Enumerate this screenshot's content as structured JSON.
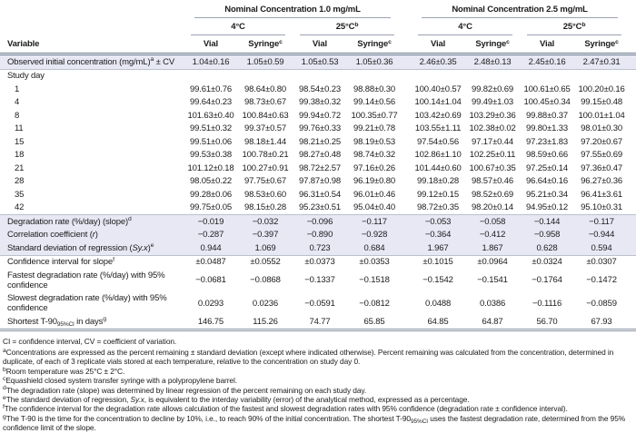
{
  "colors": {
    "row_shade": "#e7e8f4",
    "rule_light": "#9aa2b0",
    "rule_heavy": "#68788f",
    "text": "#1b1b1b"
  },
  "table": {
    "variable_header": "Variable",
    "groups": [
      {
        "label": "Nominal Concentration 1.0 mg/mL"
      },
      {
        "label": "Nominal Concentration 2.5 mg/mL"
      }
    ],
    "temps": [
      {
        "label": [
          {
            "t": "4°C"
          }
        ]
      },
      {
        "label": [
          {
            "t": "25°C"
          },
          {
            "sup": "b"
          }
        ]
      },
      {
        "label": [
          {
            "t": "4°C"
          }
        ]
      },
      {
        "label": [
          {
            "t": "25°C"
          },
          {
            "sup": "b"
          }
        ]
      }
    ],
    "columns": [
      [
        {
          "t": "Vial"
        }
      ],
      [
        {
          "t": "Syringe"
        },
        {
          "sup": "c"
        }
      ],
      [
        {
          "t": "Vial"
        }
      ],
      [
        {
          "t": "Syringe"
        },
        {
          "sup": "c"
        }
      ],
      [
        {
          "t": "Vial"
        }
      ],
      [
        {
          "t": "Syringe"
        },
        {
          "sup": "c"
        }
      ],
      [
        {
          "t": "Vial"
        }
      ],
      [
        {
          "t": "Syringe"
        },
        {
          "sup": "c"
        }
      ]
    ],
    "sections": [
      {
        "shaded": true,
        "rows": [
          {
            "label": [
              {
                "t": "Observed initial concentration (mg/mL)"
              },
              {
                "sup": "a"
              },
              {
                "t": " ± CV"
              }
            ],
            "values": [
              "1.04±0.16",
              "1.05±0.59",
              "1.05±0.53",
              "1.05±0.36",
              "2.46±0.35",
              "2.48±0.13",
              "2.45±0.16",
              "2.47±0.31"
            ]
          }
        ]
      },
      {
        "shaded": false,
        "rows": [
          {
            "label": [
              {
                "t": "Study day"
              }
            ],
            "values": []
          },
          {
            "label": [
              {
                "t": "1"
              }
            ],
            "indent": true,
            "values": [
              "99.61±0.76",
              "98.64±0.80",
              "98.54±0.23",
              "98.88±0.30",
              "100.40±0.57",
              "99.82±0.69",
              "100.61±0.65",
              "100.20±0.16"
            ]
          },
          {
            "label": [
              {
                "t": "4"
              }
            ],
            "indent": true,
            "values": [
              "99.64±0.23",
              "98.73±0.67",
              "99.38±0.32",
              "99.14±0.56",
              "100.14±1.04",
              "99.49±1.03",
              "100.45±0.34",
              "99.15±0.48"
            ]
          },
          {
            "label": [
              {
                "t": "8"
              }
            ],
            "indent": true,
            "values": [
              "101.63±0.40",
              "100.84±0.63",
              "99.94±0.72",
              "100.35±0.77",
              "103.42±0.69",
              "103.29±0.36",
              "99.88±0.37",
              "100.01±1.04"
            ]
          },
          {
            "label": [
              {
                "t": "11"
              }
            ],
            "indent": true,
            "values": [
              "99.51±0.32",
              "99.37±0.57",
              "99.76±0.33",
              "99.21±0.78",
              "103.55±1.11",
              "102.38±0.02",
              "99.80±1.33",
              "98.01±0.30"
            ]
          },
          {
            "label": [
              {
                "t": "15"
              }
            ],
            "indent": true,
            "values": [
              "99.51±0.06",
              "98.18±1.44",
              "98.21±0.25",
              "98.19±0.53",
              "97.54±0.56",
              "97.17±0.44",
              "97.23±1.83",
              "97.20±0.67"
            ]
          },
          {
            "label": [
              {
                "t": "18"
              }
            ],
            "indent": true,
            "values": [
              "99.53±0.38",
              "100.78±0.21",
              "98.27±0.48",
              "98.74±0.32",
              "102.86±1.10",
              "102.25±0.11",
              "98.59±0.66",
              "97.55±0.69"
            ]
          },
          {
            "label": [
              {
                "t": "21"
              }
            ],
            "indent": true,
            "values": [
              "101.12±0.18",
              "100.27±0.91",
              "98.72±2.57",
              "97.16±0.26",
              "101.44±0.60",
              "100.67±0.35",
              "97.25±0.14",
              "97.36±0.47"
            ]
          },
          {
            "label": [
              {
                "t": "28"
              }
            ],
            "indent": true,
            "values": [
              "98.05±0.22",
              "97.75±0.67",
              "97.87±0.98",
              "96.19±0.80",
              "99.18±0.28",
              "98.57±0.46",
              "96.64±0.16",
              "96.27±0.36"
            ]
          },
          {
            "label": [
              {
                "t": "35"
              }
            ],
            "indent": true,
            "values": [
              "99.28±0.06",
              "98.53±0.60",
              "96.31±0.54",
              "96.01±0.46",
              "99.12±0.15",
              "98.52±0.69",
              "95.21±0.34",
              "96.41±3.61"
            ]
          },
          {
            "label": [
              {
                "t": "42"
              }
            ],
            "indent": true,
            "values": [
              "99.75±0.05",
              "98.15±0.28",
              "95.23±0.51",
              "95.04±0.40",
              "98.72±0.35",
              "98.20±0.14",
              "94.95±0.12",
              "95.10±0.31"
            ]
          }
        ]
      },
      {
        "shaded": true,
        "rows": [
          {
            "label": [
              {
                "t": "Degradation rate (%/day) (slope)"
              },
              {
                "sup": "d"
              }
            ],
            "values": [
              "−0.019",
              "−0.032",
              "−0.096",
              "−0.117",
              "−0.053",
              "−0.058",
              "−0.144",
              "−0.117"
            ]
          },
          {
            "label": [
              {
                "t": "Correlation coefficient ("
              },
              {
                "i": "r"
              },
              {
                "t": ")"
              }
            ],
            "values": [
              "−0.287",
              "−0.397",
              "−0.890",
              "−0.928",
              "−0.364",
              "−0.412",
              "−0.958",
              "−0.944"
            ]
          },
          {
            "label": [
              {
                "t": "Standard deviation of regression ("
              },
              {
                "i": "Sy.x"
              },
              {
                "t": ")"
              },
              {
                "sup": "e"
              }
            ],
            "values": [
              "0.944",
              "1.069",
              "0.723",
              "0.684",
              "1.967",
              "1.867",
              "0.628",
              "0.594"
            ]
          }
        ]
      },
      {
        "shaded": false,
        "rows": [
          {
            "label": [
              {
                "t": "Confidence interval for slope"
              },
              {
                "sup": "f"
              }
            ],
            "values": [
              "±0.0487",
              "±0.0552",
              "±0.0373",
              "±0.0353",
              "±0.1015",
              "±0.0964",
              "±0.0324",
              "±0.0307"
            ]
          },
          {
            "label": [
              {
                "t": "Fastest degradation rate (%/day) with 95% confidence"
              }
            ],
            "values": [
              "−0.0681",
              "−0.0868",
              "−0.1337",
              "−0.1518",
              "−0.1542",
              "−0.1541",
              "−0.1764",
              "−0.1472"
            ]
          },
          {
            "label": [
              {
                "t": "Slowest degradation rate (%/day) with 95% confidence"
              }
            ],
            "values": [
              "0.0293",
              "0.0236",
              "−0.0591",
              "−0.0812",
              "0.0488",
              "0.0386",
              "−0.1116",
              "−0.0859"
            ]
          },
          {
            "label": [
              {
                "t": "Shortest T-90"
              },
              {
                "sub": "95%CI"
              },
              {
                "t": " in days"
              },
              {
                "sup": "g"
              }
            ],
            "values": [
              "146.75",
              "115.26",
              "74.77",
              "65.85",
              "64.85",
              "64.87",
              "56.70",
              "67.93"
            ]
          }
        ]
      }
    ]
  },
  "footnotes": {
    "abbrev": "CI = confidence interval, CV = coefficient of variation.",
    "items": [
      [
        {
          "sup": "a"
        },
        {
          "t": "Concentrations are expressed as the percent remaining ± standard deviation (except where indicated otherwise). Percent remaining was calculated from the concentration, determined in duplicate, of each of 3 replicate vials stored at each temperature, relative to the concentration on study day 0."
        }
      ],
      [
        {
          "sup": "b"
        },
        {
          "t": "Room temperature was 25°C ± 2°C."
        }
      ],
      [
        {
          "sup": "c"
        },
        {
          "t": "Equashield closed system transfer syringe with a polypropylene barrel."
        }
      ],
      [
        {
          "sup": "d"
        },
        {
          "t": "The degradation rate (slope) was determined by linear regression of the percent remaining on each study day."
        }
      ],
      [
        {
          "sup": "e"
        },
        {
          "t": "The standard deviation of regression, "
        },
        {
          "i": "Sy.x"
        },
        {
          "t": ", is equivalent to the interday variability (error) of the analytical method, expressed as a percentage."
        }
      ],
      [
        {
          "sup": "f"
        },
        {
          "t": "The confidence interval for the degradation rate allows calculation of the fastest and slowest degradation rates with 95% confidence (degradation rate ± confidence interval)."
        }
      ],
      [
        {
          "sup": "g"
        },
        {
          "t": "The T-90 is the time for the concentration to decline by 10%, i.e., to reach 90% of the initial concentration. The shortest T-90"
        },
        {
          "sub": "95%CI"
        },
        {
          "t": " uses the fastest degradation rate, determined from the 95% confidence limit of the slope."
        }
      ]
    ]
  }
}
